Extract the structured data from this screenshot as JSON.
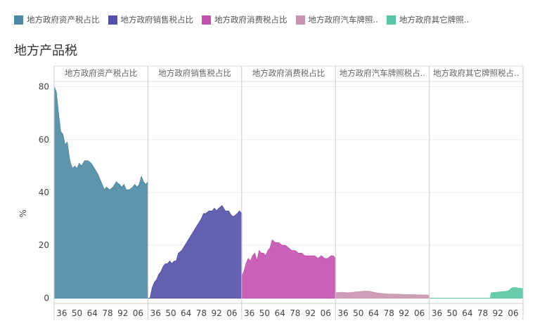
{
  "title": "地方产品税",
  "legend": [
    {
      "label": "地方政府资产税占比",
      "color": "#4e8aa3"
    },
    {
      "label": "地方政府销售税占比",
      "color": "#5350a8"
    },
    {
      "label": "地方政府消费税占比",
      "color": "#c351b0"
    },
    {
      "label": "地方政府汽车牌照..",
      "color": "#c992ae"
    },
    {
      "label": "地方政府其它牌照..",
      "color": "#59c6a3"
    }
  ],
  "chart_data": {
    "type": "area",
    "ylabel": "%",
    "ylim": [
      -2,
      82
    ],
    "yticks": [
      0,
      20,
      40,
      60,
      80
    ],
    "xticks": [
      "36",
      "50",
      "64",
      "78",
      "92",
      "06"
    ],
    "xlim": [
      1929,
      2015
    ],
    "panel_titles": [
      "地方政府资产税占比",
      "地方政府销售税占比",
      "地方政府消费税占比",
      "地方政府汽车牌照税占..",
      "地方政府其它牌照税占.."
    ],
    "series": [
      {
        "name": "地方政府资产税占比",
        "color": "#4e8aa3",
        "x": [
          1929,
          1931,
          1933,
          1935,
          1937,
          1939,
          1941,
          1943,
          1944,
          1946,
          1948,
          1950,
          1952,
          1954,
          1957,
          1960,
          1963,
          1966,
          1969,
          1972,
          1975,
          1977,
          1980,
          1983,
          1986,
          1989,
          1991,
          1993,
          1995,
          1998,
          2001,
          2003,
          2005,
          2007,
          2009,
          2011,
          2013,
          2015
        ],
        "values": [
          80,
          78,
          70,
          63,
          62,
          58,
          59,
          53,
          51,
          49,
          50,
          49,
          51,
          50,
          52,
          52,
          51,
          49,
          47,
          44,
          41,
          42,
          41,
          42,
          44,
          43,
          42,
          43,
          41,
          41,
          42,
          43,
          42,
          43,
          46,
          44,
          43,
          44
        ]
      },
      {
        "name": "地方政府销售税占比",
        "color": "#5350a8",
        "x": [
          1929,
          1931,
          1933,
          1935,
          1937,
          1939,
          1941,
          1943,
          1945,
          1947,
          1949,
          1951,
          1953,
          1955,
          1957,
          1960,
          1963,
          1966,
          1969,
          1972,
          1975,
          1978,
          1980,
          1982,
          1985,
          1988,
          1990,
          1992,
          1994,
          1997,
          2000,
          2003,
          2006,
          2008,
          2011,
          2013,
          2015
        ],
        "values": [
          0,
          0,
          4,
          6,
          7,
          9,
          10,
          12,
          13,
          13,
          14,
          13,
          14,
          14,
          17,
          18,
          20,
          22,
          24,
          26,
          28,
          30,
          32,
          32,
          33,
          33,
          34,
          33,
          34,
          35,
          33,
          33,
          31,
          31,
          32,
          33,
          32
        ]
      },
      {
        "name": "地方政府消费税占比",
        "color": "#c351b0",
        "x": [
          1929,
          1931,
          1933,
          1935,
          1937,
          1939,
          1941,
          1943,
          1945,
          1947,
          1949,
          1951,
          1953,
          1955,
          1957,
          1960,
          1963,
          1966,
          1969,
          1972,
          1975,
          1978,
          1981,
          1984,
          1987,
          1990,
          1993,
          1996,
          1999,
          2002,
          2005,
          2008,
          2011,
          2013,
          2015
        ],
        "values": [
          8,
          10,
          13,
          15,
          14,
          16,
          17,
          14,
          18,
          17,
          17,
          16,
          18,
          19,
          22,
          21,
          21,
          20,
          20,
          19,
          18,
          18,
          17,
          17,
          16,
          16,
          16,
          16,
          15,
          16,
          15,
          15,
          16,
          16,
          15
        ]
      },
      {
        "name": "地方政府汽车牌照税占比",
        "color": "#c992ae",
        "x": [
          1929,
          1935,
          1940,
          1945,
          1950,
          1955,
          1960,
          1965,
          1970,
          1975,
          1980,
          1985,
          1990,
          1995,
          2000,
          2005,
          2010,
          2015
        ],
        "values": [
          2,
          2.2,
          2,
          2.2,
          2.4,
          2.6,
          2.6,
          2.1,
          1.8,
          1.6,
          1.5,
          1.5,
          1.4,
          1.3,
          1.3,
          1.2,
          1.2,
          1.1
        ]
      },
      {
        "name": "地方政府其它牌照税占比",
        "color": "#59c6a3",
        "x": [
          1929,
          1940,
          1960,
          1985,
          1986,
          1990,
          1995,
          2000,
          2002,
          2004,
          2006,
          2008,
          2010,
          2012,
          2015
        ],
        "values": [
          0,
          0,
          0,
          0,
          2,
          2.2,
          2.4,
          2.6,
          2.8,
          3.6,
          4,
          4,
          3.8,
          3.7,
          3.6
        ]
      }
    ]
  }
}
